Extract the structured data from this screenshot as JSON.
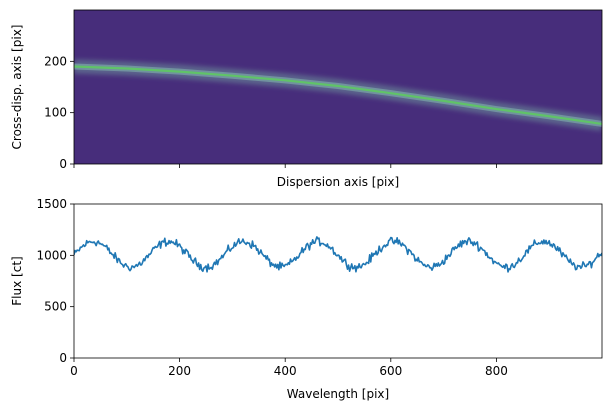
{
  "chart_data": [
    {
      "type": "heatmap",
      "title": "",
      "xlabel": "Dispersion axis [pix]",
      "ylabel": "Cross-disp. axis [pix]",
      "xlim": [
        0,
        1000
      ],
      "ylim": [
        0,
        300
      ],
      "xticks": [
        0,
        200,
        400,
        600,
        800
      ],
      "xtick_labels_shown": false,
      "yticks": [
        0,
        100,
        200
      ],
      "ytick_labels": [
        "0",
        "100",
        "200"
      ],
      "colormap": "viridis",
      "background_color": "#472d7b",
      "trace": {
        "x": [
          0,
          100,
          200,
          300,
          400,
          500,
          600,
          700,
          800,
          900,
          1000
        ],
        "y": [
          190,
          186,
          180,
          172,
          163,
          152,
          138,
          123,
          107,
          93,
          78
        ],
        "core_color": "#5ec962",
        "halo_color": "#6b8f9a"
      }
    },
    {
      "type": "line",
      "title": "",
      "xlabel": "Wavelength [pix]",
      "ylabel": "Flux [ct]",
      "xlim": [
        0,
        1000
      ],
      "ylim": [
        0,
        1500
      ],
      "xticks": [
        0,
        200,
        400,
        600,
        800
      ],
      "xtick_labels": [
        "0",
        "200",
        "400",
        "600",
        "800"
      ],
      "yticks": [
        0,
        500,
        1000,
        1500
      ],
      "ytick_labels": [
        "0",
        "500",
        "1000",
        "1500"
      ],
      "series": [
        {
          "name": "flux",
          "color": "#1f77b4",
          "baseline": 1010,
          "amplitude": 125,
          "period": 142,
          "phase_peak_x": 37,
          "noise": 40
        }
      ]
    }
  ]
}
